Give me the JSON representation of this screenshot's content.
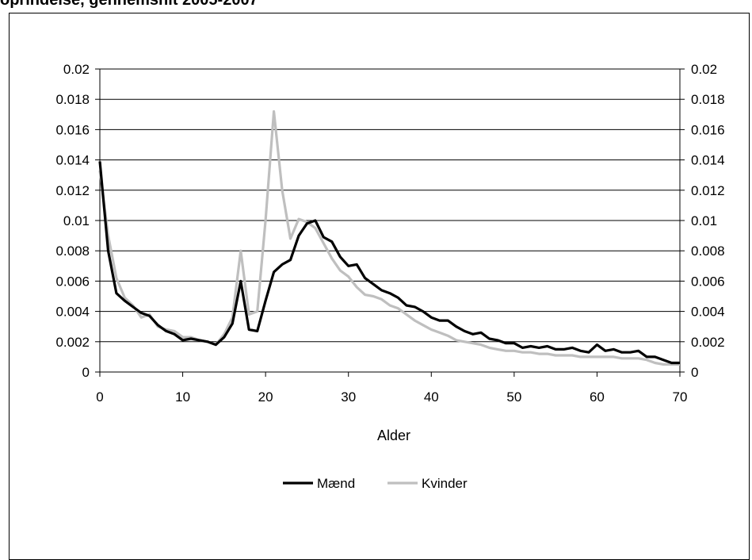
{
  "chart_data": {
    "type": "line",
    "title": "oprindelse, gennemsnit 2005-2007",
    "xlabel": "Alder",
    "ylabel": "",
    "xlim": [
      0,
      70
    ],
    "ylim": [
      0,
      0.02
    ],
    "x_ticks": [
      "0",
      "10",
      "20",
      "30",
      "40",
      "50",
      "60",
      "70"
    ],
    "y_ticks": [
      "0",
      "0.002",
      "0.004",
      "0.006",
      "0.008",
      "0.01",
      "0.012",
      "0.014",
      "0.016",
      "0.018",
      "0.02"
    ],
    "grid": true,
    "legend_position": "bottom",
    "x": [
      0,
      1,
      2,
      3,
      4,
      5,
      6,
      7,
      8,
      9,
      10,
      11,
      12,
      13,
      14,
      15,
      16,
      17,
      18,
      19,
      20,
      21,
      22,
      23,
      24,
      25,
      26,
      27,
      28,
      29,
      30,
      31,
      32,
      33,
      34,
      35,
      36,
      37,
      38,
      39,
      40,
      41,
      42,
      43,
      44,
      45,
      46,
      47,
      48,
      49,
      50,
      51,
      52,
      53,
      54,
      55,
      56,
      57,
      58,
      59,
      60,
      61,
      62,
      63,
      64,
      65,
      66,
      67,
      68,
      69,
      70
    ],
    "series": [
      {
        "name": "Mænd",
        "color": "#000000",
        "values": [
          0.0139,
          0.008,
          0.0052,
          0.0047,
          0.0043,
          0.0039,
          0.0037,
          0.0031,
          0.0027,
          0.0025,
          0.0021,
          0.0022,
          0.0021,
          0.002,
          0.0018,
          0.0023,
          0.0032,
          0.006,
          0.0028,
          0.0027,
          0.0047,
          0.0066,
          0.0071,
          0.0074,
          0.009,
          0.0098,
          0.01,
          0.0089,
          0.0086,
          0.0076,
          0.007,
          0.0071,
          0.0062,
          0.0058,
          0.0054,
          0.0052,
          0.0049,
          0.0044,
          0.0043,
          0.004,
          0.0036,
          0.0034,
          0.0034,
          0.003,
          0.0027,
          0.0025,
          0.0026,
          0.0022,
          0.0021,
          0.0019,
          0.0019,
          0.0016,
          0.0017,
          0.0016,
          0.0017,
          0.0015,
          0.0015,
          0.0016,
          0.0014,
          0.0013,
          0.0018,
          0.0014,
          0.0015,
          0.0013,
          0.0013,
          0.0014,
          0.001,
          0.001,
          0.0008,
          0.0006,
          0.0006
        ]
      },
      {
        "name": "Kvinder",
        "color": "#bfbfbf",
        "values": [
          0.0133,
          0.009,
          0.0062,
          0.0049,
          0.0044,
          0.0036,
          0.0038,
          0.003,
          0.0028,
          0.0027,
          0.0023,
          0.0023,
          0.0021,
          0.002,
          0.0018,
          0.0025,
          0.0036,
          0.008,
          0.0038,
          0.004,
          0.01,
          0.0172,
          0.012,
          0.0088,
          0.0101,
          0.0099,
          0.0095,
          0.0085,
          0.0075,
          0.0067,
          0.0063,
          0.0056,
          0.0051,
          0.005,
          0.0048,
          0.0044,
          0.0042,
          0.0038,
          0.0034,
          0.0031,
          0.0028,
          0.0026,
          0.0024,
          0.0021,
          0.002,
          0.0019,
          0.0018,
          0.0016,
          0.0015,
          0.0014,
          0.0014,
          0.0013,
          0.0013,
          0.0012,
          0.0012,
          0.0011,
          0.0011,
          0.0011,
          0.001,
          0.001,
          0.001,
          0.001,
          0.001,
          0.0009,
          0.0009,
          0.0009,
          0.0008,
          0.0006,
          0.0005,
          0.0005,
          0.0005
        ]
      }
    ]
  }
}
